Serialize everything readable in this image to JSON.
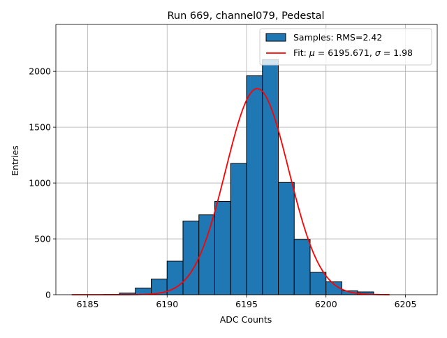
{
  "chart_data": {
    "type": "bar",
    "title": "Run 669, channel079, Pedestal",
    "xlabel": "ADC Counts",
    "ylabel": "Entries",
    "xlim": [
      6183,
      6207
    ],
    "ylim": [
      0,
      2420
    ],
    "xticks": [
      6185,
      6190,
      6195,
      6200,
      6205
    ],
    "yticks": [
      0,
      500,
      1000,
      1500,
      2000
    ],
    "grid": true,
    "legend_position": "top-right",
    "histogram": {
      "name": "Samples: RMS=2.42",
      "color": "#1f77b4",
      "edgecolor": "#000000",
      "bins": [
        {
          "x0": 6184,
          "x1": 6185,
          "count": 0
        },
        {
          "x0": 6185,
          "x1": 6186,
          "count": 0
        },
        {
          "x0": 6186,
          "x1": 6187,
          "count": 2
        },
        {
          "x0": 6187,
          "x1": 6188,
          "count": 15
        },
        {
          "x0": 6188,
          "x1": 6189,
          "count": 60
        },
        {
          "x0": 6189,
          "x1": 6190,
          "count": 140
        },
        {
          "x0": 6190,
          "x1": 6191,
          "count": 300
        },
        {
          "x0": 6191,
          "x1": 6192,
          "count": 660
        },
        {
          "x0": 6192,
          "x1": 6193,
          "count": 715
        },
        {
          "x0": 6193,
          "x1": 6194,
          "count": 835
        },
        {
          "x0": 6194,
          "x1": 6195,
          "count": 1175
        },
        {
          "x0": 6195,
          "x1": 6196,
          "count": 1960
        },
        {
          "x0": 6196,
          "x1": 6197,
          "count": 2105
        },
        {
          "x0": 6197,
          "x1": 6198,
          "count": 1005
        },
        {
          "x0": 6198,
          "x1": 6199,
          "count": 495
        },
        {
          "x0": 6199,
          "x1": 6200,
          "count": 200
        },
        {
          "x0": 6200,
          "x1": 6201,
          "count": 115
        },
        {
          "x0": 6201,
          "x1": 6202,
          "count": 35
        },
        {
          "x0": 6202,
          "x1": 6203,
          "count": 25
        },
        {
          "x0": 6203,
          "x1": 6204,
          "count": 0
        }
      ]
    },
    "fit": {
      "name": "Fit: μ = 6195.671, σ = 1.98",
      "label_prefix": "Fit: ",
      "mu_symbol": "μ",
      "mu_text": " = 6195.671, ",
      "sigma_symbol": "σ",
      "sigma_text": " = 1.98",
      "color": "#ff0000",
      "mu": 6195.671,
      "sigma": 1.98,
      "amplitude": 1845,
      "x_range": [
        6184,
        6204
      ]
    }
  }
}
